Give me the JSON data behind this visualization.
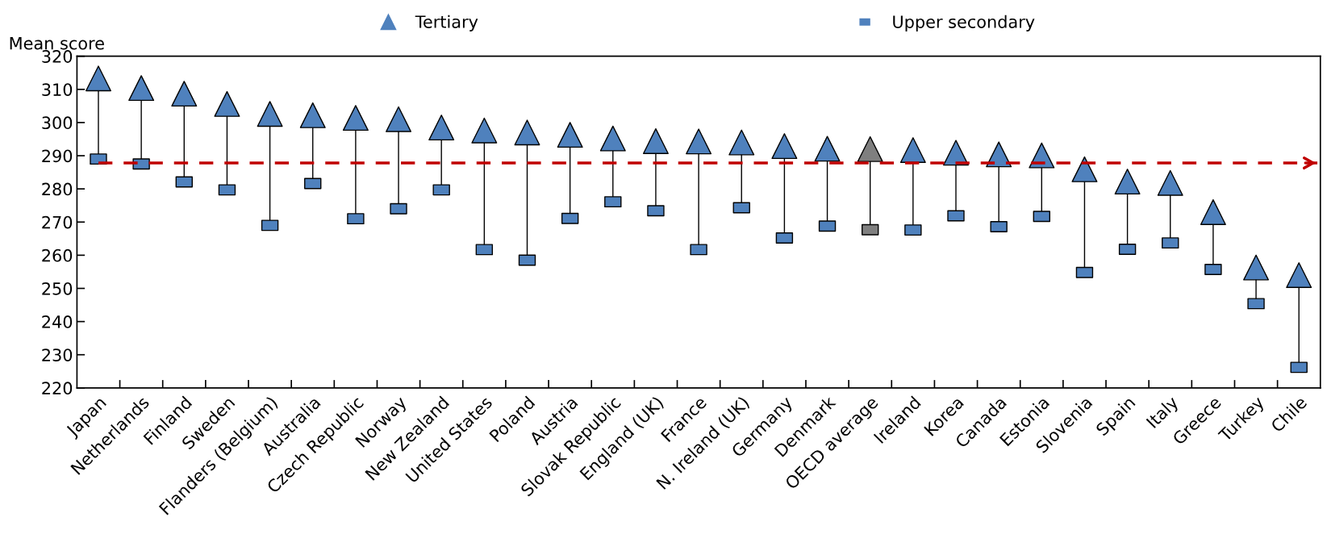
{
  "chart_data": {
    "type": "scatter",
    "ylabel": "Mean score",
    "categories": [
      "Japan",
      "Netherlands",
      "Finland",
      "Sweden",
      "Flanders (Belgium)",
      "Australia",
      "Czech Republic",
      "Norway",
      "New Zealand",
      "United States",
      "Poland",
      "Austria",
      "Slovak Republic",
      "England (UK)",
      "France",
      "N. Ireland (UK)",
      "Germany",
      "Denmark",
      "OECD average",
      "Ireland",
      "Korea",
      "Canada",
      "Estonia",
      "Slovenia",
      "Spain",
      "Italy",
      "Greece",
      "Turkey",
      "Chile"
    ],
    "series": [
      {
        "name": "Tertiary",
        "marker": "triangle",
        "color": "#4f81bd",
        "colors": [
          "#4f81bd",
          "#4f81bd",
          "#4f81bd",
          "#4f81bd",
          "#4f81bd",
          "#4f81bd",
          "#4f81bd",
          "#4f81bd",
          "#4f81bd",
          "#4f81bd",
          "#4f81bd",
          "#4f81bd",
          "#4f81bd",
          "#4f81bd",
          "#4f81bd",
          "#4f81bd",
          "#4f81bd",
          "#4f81bd",
          "#7f7f7f",
          "#4f81bd",
          "#4f81bd",
          "#4f81bd",
          "#4f81bd",
          "#4f81bd",
          "#4f81bd",
          "#4f81bd",
          "#4f81bd",
          "#4f81bd",
          "#4f81bd"
        ],
        "values": [
          313.3,
          310.4,
          308.7,
          305.6,
          302.6,
          302.2,
          301.4,
          301.0,
          298.5,
          297.6,
          297.0,
          296.3,
          295.2,
          294.4,
          294.3,
          294.0,
          292.9,
          292.1,
          292.0,
          291.7,
          290.9,
          290.4,
          290.1,
          285.9,
          282.2,
          281.8,
          273.0,
          256.3,
          254.0
        ]
      },
      {
        "name": "Upper secondary",
        "marker": "square",
        "color": "#4f81bd",
        "colors": [
          "#4f81bd",
          "#4f81bd",
          "#4f81bd",
          "#4f81bd",
          "#4f81bd",
          "#4f81bd",
          "#4f81bd",
          "#4f81bd",
          "#4f81bd",
          "#4f81bd",
          "#4f81bd",
          "#4f81bd",
          "#4f81bd",
          "#4f81bd",
          "#4f81bd",
          "#4f81bd",
          "#4f81bd",
          "#4f81bd",
          "#7f7f7f",
          "#4f81bd",
          "#4f81bd",
          "#4f81bd",
          "#4f81bd",
          "#4f81bd",
          "#4f81bd",
          "#4f81bd",
          "#4f81bd",
          "#4f81bd",
          "#4f81bd"
        ],
        "values": [
          289.0,
          287.5,
          282.1,
          279.7,
          269.0,
          281.6,
          271.0,
          274.0,
          279.7,
          261.7,
          258.5,
          271.1,
          276.1,
          273.4,
          261.7,
          274.3,
          265.2,
          268.8,
          267.7,
          267.6,
          271.9,
          268.6,
          271.7,
          254.8,
          261.8,
          263.7,
          255.7,
          245.4,
          226.2
        ]
      }
    ],
    "ylim": [
      220,
      320
    ],
    "yticks": [
      220,
      230,
      240,
      250,
      260,
      270,
      280,
      290,
      300,
      310,
      320
    ],
    "ref_lines": [
      {
        "axis": "y",
        "value": 287.8,
        "color": "#c00000",
        "line_style": "dashed"
      }
    ],
    "grid": false,
    "legend": "top"
  }
}
